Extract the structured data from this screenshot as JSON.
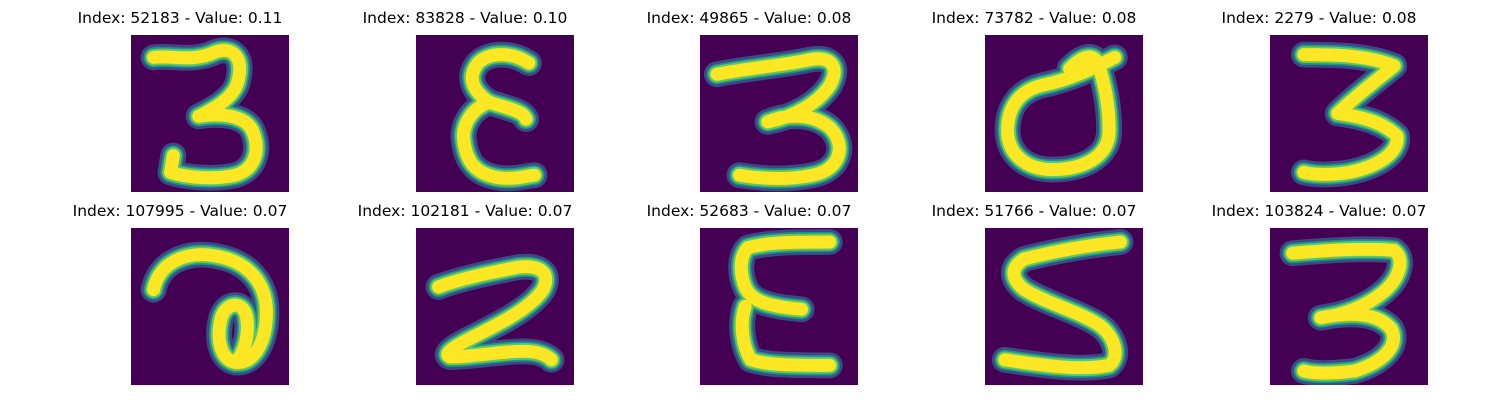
{
  "colors": {
    "background": "#440154",
    "stroke_core": "#fde725",
    "stroke_mid": "#21918c",
    "stroke_outer": "#3b528b"
  },
  "panels": [
    {
      "title": "Index: 52183 - Value: 0.11"
    },
    {
      "title": "Index: 83828 - Value: 0.10"
    },
    {
      "title": "Index: 49865 - Value: 0.08"
    },
    {
      "title": "Index: 73782 - Value: 0.08"
    },
    {
      "title": "Index: 2279 - Value: 0.08"
    },
    {
      "title": "Index: 107995 - Value: 0.07"
    },
    {
      "title": "Index: 102181 - Value: 0.07"
    },
    {
      "title": "Index: 52683 - Value: 0.07"
    },
    {
      "title": "Index: 51766 - Value: 0.07"
    },
    {
      "title": "Index: 103824 - Value: 0.07"
    }
  ]
}
